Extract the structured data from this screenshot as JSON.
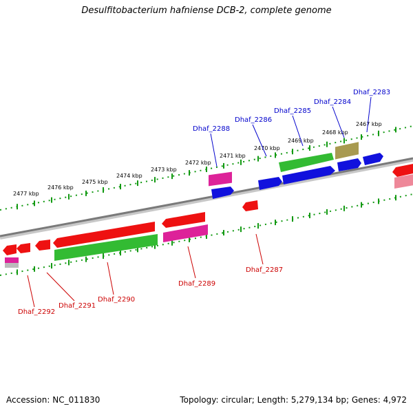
{
  "title": "Desulfitobacterium hafniense DCB-2, complete genome",
  "footer": {
    "accession": "Accession: NC_011830",
    "topology": "Topology: circular; Length: 5,279,134 bp; Genes: 4,972"
  },
  "colors": {
    "red": "#ee1111",
    "blue": "#1111dd",
    "green": "#33bb33",
    "magenta": "#dd2299",
    "olive": "#a89a50",
    "pink": "#ee8899",
    "grey": "#bbbbbb",
    "backbone": "#888888",
    "ticks": "#119911",
    "label_blue": "#0000cc",
    "label_red": "#cc0000"
  },
  "kbp_ticks": [
    "2467 kbp",
    "2468 kbp",
    "2469 kbp",
    "2470 kbp",
    "2471 kbp",
    "2472 kbp",
    "2473 kbp",
    "2474 kbp",
    "2475 kbp",
    "2476 kbp",
    "2477 kbp"
  ],
  "top_labels": [
    "Dhaf_2283",
    "Dhaf_2284",
    "Dhaf_2285",
    "Dhaf_2286",
    "Dhaf_2288"
  ],
  "bottom_labels": [
    "Dhaf_2287",
    "Dhaf_2289",
    "Dhaf_2290",
    "Dhaf_2291",
    "Dhaf_2292"
  ]
}
